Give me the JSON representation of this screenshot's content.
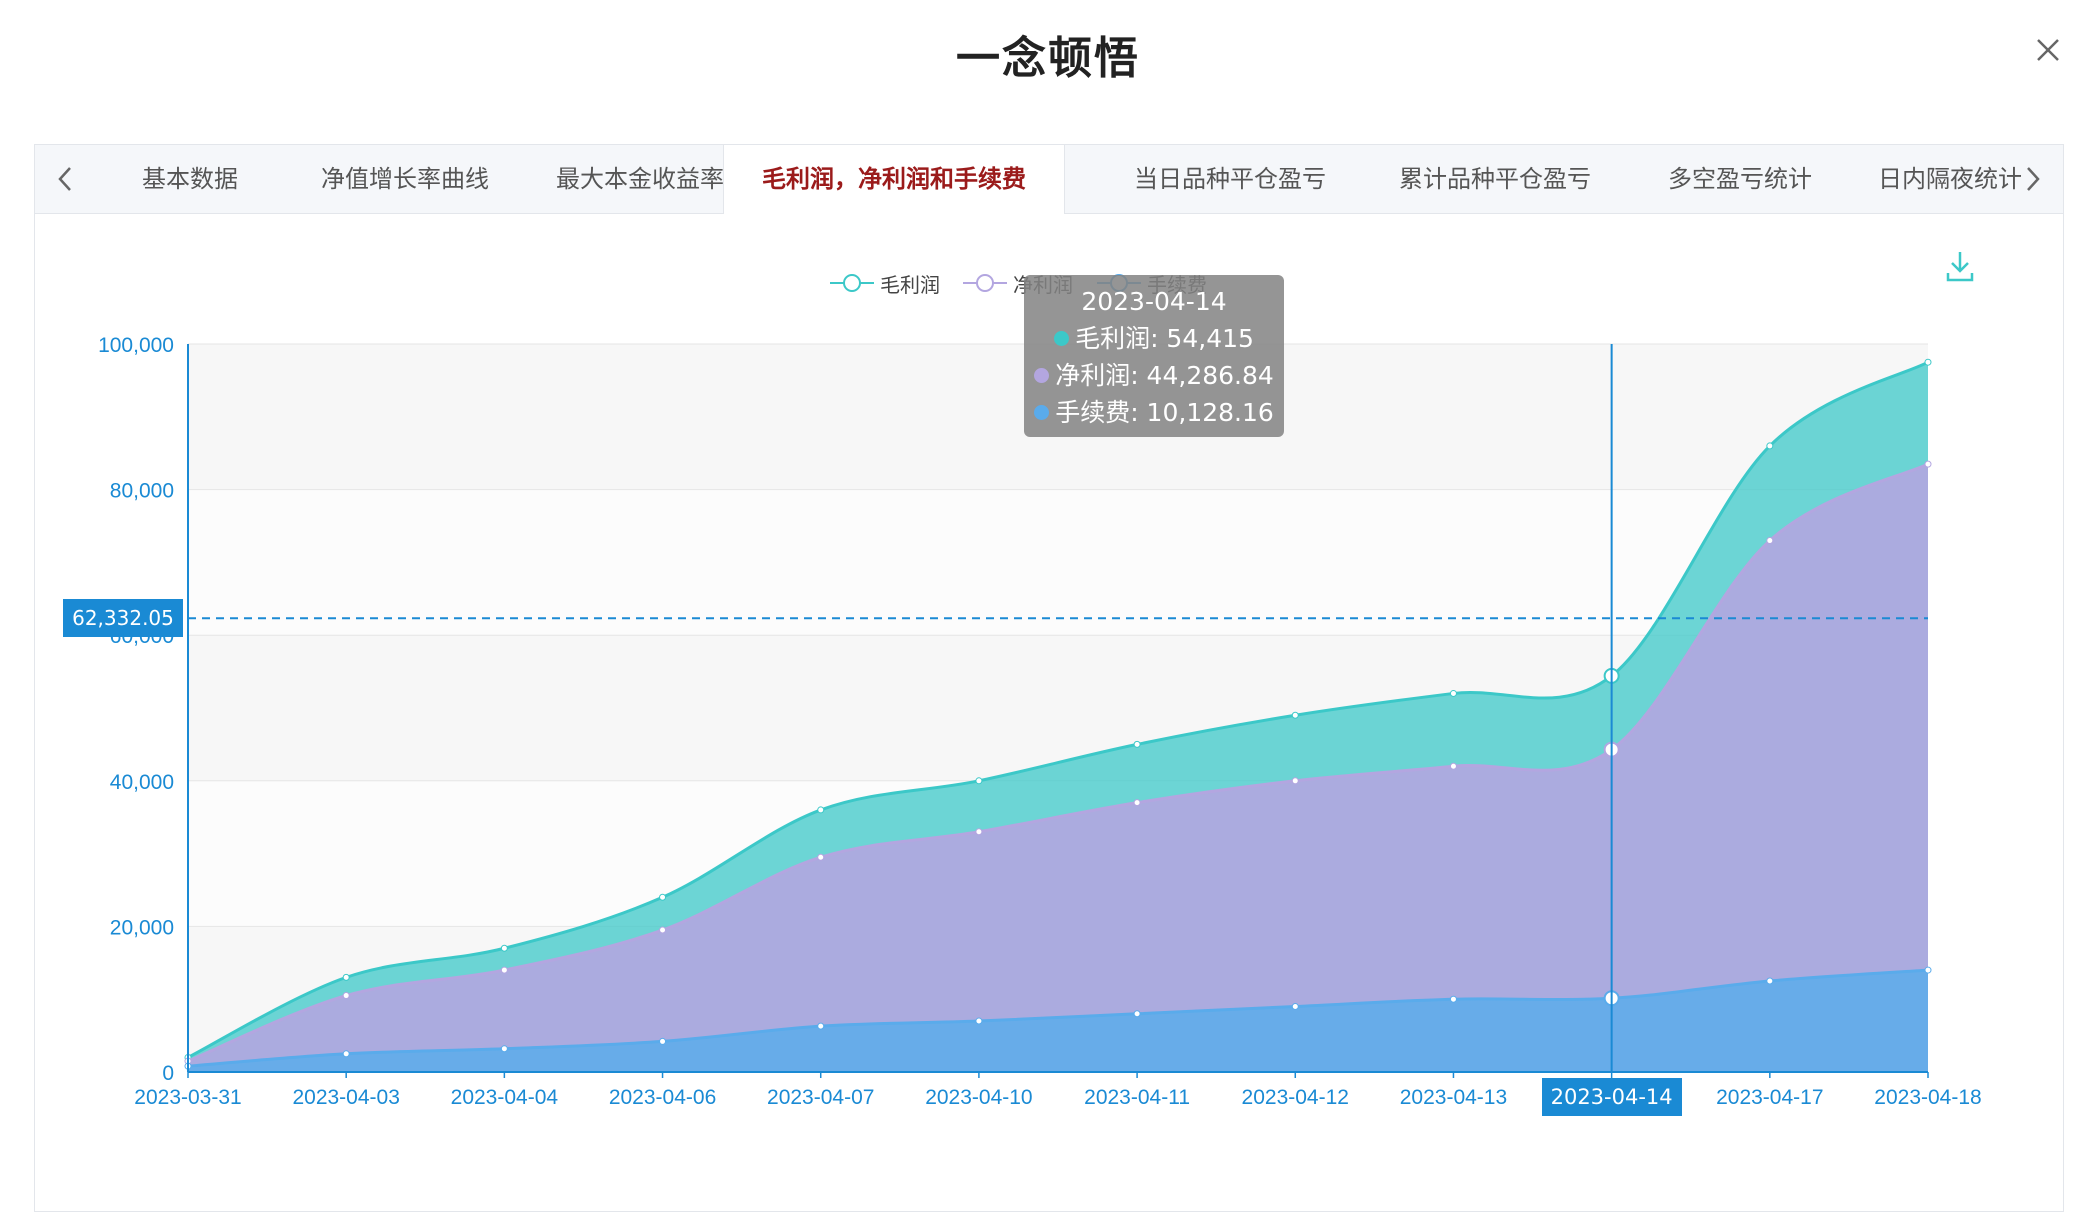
{
  "window": {
    "title": "一念顿悟"
  },
  "tabs": [
    {
      "label": "基本数据",
      "active": false
    },
    {
      "label": "净值增长率曲线",
      "active": false
    },
    {
      "label": "最大本金收益率",
      "active": false
    },
    {
      "label": "毛利润，净利润和手续费",
      "active": true
    },
    {
      "label": "当日品种平仓盈亏",
      "active": false
    },
    {
      "label": "累计品种平仓盈亏",
      "active": false
    },
    {
      "label": "多空盈亏统计",
      "active": false
    },
    {
      "label": "日内隔夜统计",
      "active": false
    }
  ],
  "icons": {
    "close": "close-icon",
    "prev": "chevron-left-icon",
    "next": "chevron-right-icon",
    "download": "download-icon"
  },
  "tooltip": {
    "date": "2023-04-14",
    "rows": [
      {
        "label": "毛利润: 54,415",
        "color": "#3cc8c8"
      },
      {
        "label": "净利润: 44,286.84",
        "color": "#b3a6e0"
      },
      {
        "label": "手续费: 10,128.16",
        "color": "#5aabeb"
      }
    ]
  },
  "crosshair": {
    "y_label": "62,332.05",
    "y_value": 62332.05,
    "x_label": "2023-04-14"
  },
  "colors": {
    "gross": "#3cc8c8",
    "net": "#b3a6e0",
    "fee": "#5aabeb",
    "axis": "#1a8ad4",
    "active_tab": "#9b1b1b"
  },
  "chart_data": {
    "type": "area",
    "categories": [
      "2023-03-31",
      "2023-04-03",
      "2023-04-04",
      "2023-04-06",
      "2023-04-07",
      "2023-04-10",
      "2023-04-11",
      "2023-04-12",
      "2023-04-13",
      "2023-04-14",
      "2023-04-17",
      "2023-04-18"
    ],
    "series": [
      {
        "name": "毛利润",
        "values": [
          2000,
          13000,
          17000,
          24000,
          36000,
          40000,
          45000,
          49000,
          52000,
          54415,
          86000,
          97500
        ],
        "color": "#3cc8c8"
      },
      {
        "name": "净利润",
        "values": [
          1500,
          10500,
          14000,
          19500,
          29500,
          33000,
          37000,
          40000,
          42000,
          44286.84,
          73000,
          83500
        ],
        "color": "#b3a6e0"
      },
      {
        "name": "手续费",
        "values": [
          800,
          2500,
          3200,
          4200,
          6300,
          7000,
          8000,
          9000,
          10000,
          10128.16,
          12500,
          14000
        ],
        "color": "#5aabeb"
      }
    ],
    "ylim": [
      0,
      100000
    ],
    "yticks": [
      "0",
      "20,000",
      "40,000",
      "60,000",
      "80,000",
      "100,000"
    ],
    "grid": true,
    "legend_position": "top-center",
    "highlight_category": "2023-04-14"
  }
}
